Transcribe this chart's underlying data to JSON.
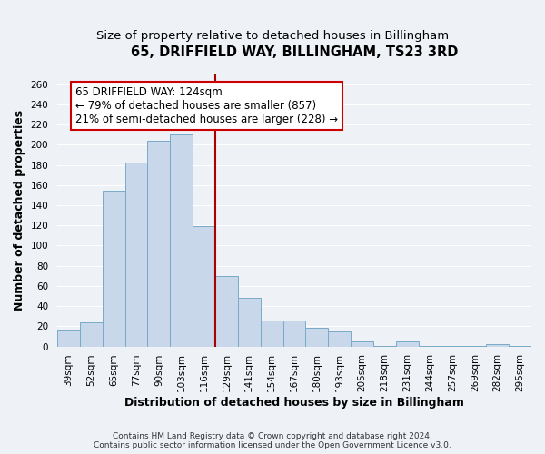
{
  "title": "65, DRIFFIELD WAY, BILLINGHAM, TS23 3RD",
  "subtitle": "Size of property relative to detached houses in Billingham",
  "xlabel": "Distribution of detached houses by size in Billingham",
  "ylabel": "Number of detached properties",
  "bar_labels": [
    "39sqm",
    "52sqm",
    "65sqm",
    "77sqm",
    "90sqm",
    "103sqm",
    "116sqm",
    "129sqm",
    "141sqm",
    "154sqm",
    "167sqm",
    "180sqm",
    "193sqm",
    "205sqm",
    "218sqm",
    "231sqm",
    "244sqm",
    "257sqm",
    "269sqm",
    "282sqm",
    "295sqm"
  ],
  "bar_values": [
    17,
    24,
    154,
    182,
    204,
    210,
    119,
    70,
    48,
    26,
    26,
    19,
    15,
    5,
    1,
    5,
    1,
    1,
    1,
    2,
    1
  ],
  "bar_color": "#c8d8ea",
  "bar_edge_color": "#7aaac8",
  "property_line_color": "#aa0000",
  "annotation_text": "65 DRIFFIELD WAY: 124sqm\n← 79% of detached houses are smaller (857)\n21% of semi-detached houses are larger (228) →",
  "annotation_box_facecolor": "#ffffff",
  "annotation_box_edgecolor": "#cc0000",
  "ylim": [
    0,
    270
  ],
  "yticks": [
    0,
    20,
    40,
    60,
    80,
    100,
    120,
    140,
    160,
    180,
    200,
    220,
    240,
    260
  ],
  "footer_line1": "Contains HM Land Registry data © Crown copyright and database right 2024.",
  "footer_line2": "Contains public sector information licensed under the Open Government Licence v3.0.",
  "background_color": "#eef2f7",
  "grid_color": "#ffffff",
  "title_fontsize": 10.5,
  "subtitle_fontsize": 9.5,
  "axis_label_fontsize": 9,
  "tick_fontsize": 7.5,
  "annotation_fontsize": 8.5,
  "footer_fontsize": 6.5
}
